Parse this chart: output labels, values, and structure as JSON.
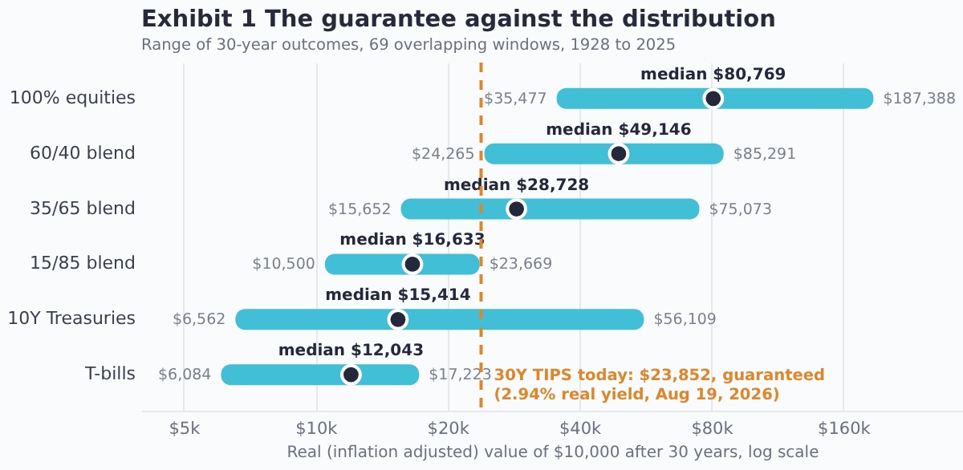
{
  "chart_data": {
    "type": "bar",
    "orientation": "horizontal",
    "log": "x",
    "title": "Exhibit 1  The guarantee against the distribution",
    "subtitle": "Range of 30-year outcomes, 69 overlapping windows, 1928 to 2025",
    "xlabel": "Real (inflation adjusted) value of $10,000 after 30 years, log scale",
    "categories": [
      "100% equities",
      "60/40 blend",
      "35/65 blend",
      "15/85 blend",
      "10Y Treasuries",
      "T-bills"
    ],
    "series": [
      {
        "type": "bar",
        "color": "#41bfd6",
        "base": [
          35477,
          24265,
          15652,
          10500,
          6562,
          6084
        ],
        "values": [
          151911,
          61026,
          59421,
          13169,
          49547,
          11139
        ]
      },
      {
        "type": "scatter",
        "color": "#23283a",
        "marker": "circle",
        "x": [
          "100% equities",
          "60/40 blend",
          "35/65 blend",
          "15/85 blend",
          "10Y Treasuries",
          "T-bills"
        ],
        "values": [
          80769,
          49146,
          28728,
          16633,
          15414,
          12043
        ],
        "value_labels": [
          "median $80,769",
          "median $49,146",
          "median $28,728",
          "median $16,633",
          "median $15,414",
          "median $12,043"
        ]
      }
    ],
    "xlim": [
      4000,
      300000
    ],
    "xticks": [
      {
        "value": 5000,
        "label": "$5k"
      },
      {
        "value": 10000,
        "label": "$10k"
      },
      {
        "value": 20000,
        "label": "$20k"
      },
      {
        "value": 40000,
        "label": "$40k"
      },
      {
        "value": 80000,
        "label": "$80k"
      },
      {
        "value": 160000,
        "label": "$160k"
      }
    ],
    "grid": "x",
    "ref_lines": [
      {
        "axis": "x",
        "value": 23852,
        "label": "30Y TIPS today: $23,852, guaranteed\n(2.94% real yield, Aug 19, 2026)",
        "color": "#e0862a",
        "line_style": "dashed"
      }
    ],
    "annotations": [
      {
        "text": "$35,477",
        "x": 35477,
        "y": "100% equities"
      },
      {
        "text": "$187,388",
        "x": 187388,
        "y": "100% equities"
      },
      {
        "text": "$24,265",
        "x": 24265,
        "y": "60/40 blend"
      },
      {
        "text": "$85,291",
        "x": 85291,
        "y": "60/40 blend"
      },
      {
        "text": "$15,652",
        "x": 15652,
        "y": "35/65 blend"
      },
      {
        "text": "$75,073",
        "x": 75073,
        "y": "35/65 blend"
      },
      {
        "text": "$10,500",
        "x": 10500,
        "y": "15/85 blend"
      },
      {
        "text": "$23,669",
        "x": 23669,
        "y": "15/85 blend"
      },
      {
        "text": "$6,562",
        "x": 6562,
        "y": "10Y Treasuries"
      },
      {
        "text": "$56,109",
        "x": 56109,
        "y": "10Y Treasuries"
      },
      {
        "text": "$6,084",
        "x": 6084,
        "y": "T-bills"
      },
      {
        "text": "$17,223",
        "x": 17223,
        "y": "T-bills"
      }
    ]
  }
}
